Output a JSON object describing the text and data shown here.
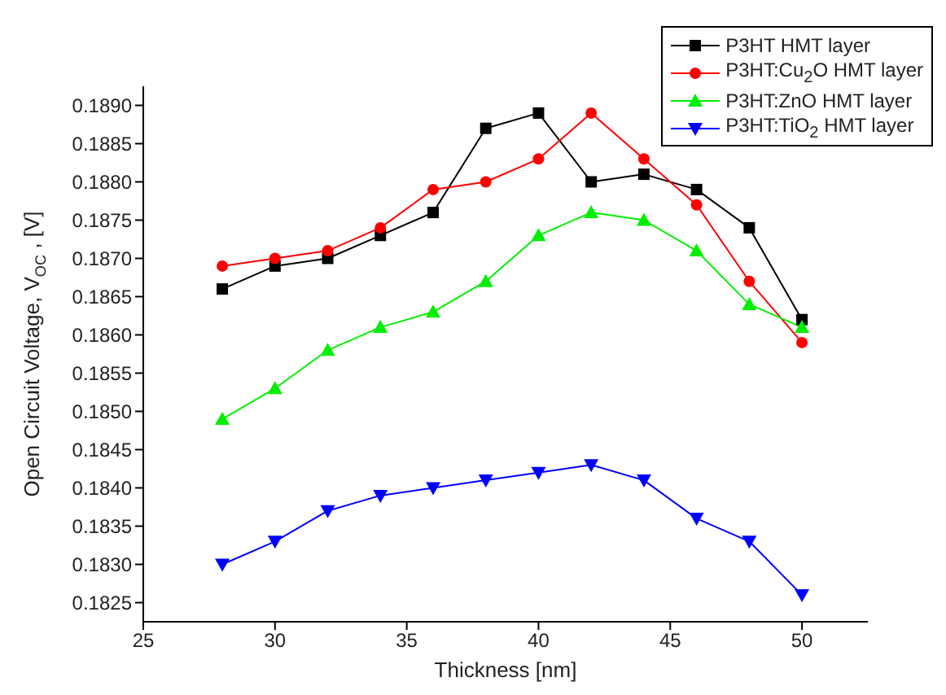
{
  "chart_data": {
    "type": "line",
    "xlabel": "Thickness  [nm]",
    "ylabel": "Open Circuit Voltage, V$_{OC}$,  [V]",
    "x": [
      28,
      30,
      32,
      34,
      36,
      38,
      40,
      42,
      44,
      46,
      48,
      50
    ],
    "xlim": [
      25,
      52.5
    ],
    "xticks": [
      25,
      30,
      35,
      40,
      45,
      50
    ],
    "ylim": [
      0.18225,
      0.18925
    ],
    "yticks": [
      0.1825,
      {
        "value": 0.183,
        "label": "0.1830"
      },
      0.1835,
      {
        "value": 0.184,
        "label": "0.1840"
      },
      0.1845,
      {
        "value": 0.185,
        "label": "0.1850"
      },
      0.1855,
      {
        "value": 0.186,
        "label": "0.1860"
      },
      0.1865,
      {
        "value": 0.187,
        "label": "0.1870"
      },
      0.1875,
      {
        "value": 0.188,
        "label": "0.1880"
      },
      0.1885,
      {
        "value": 0.189,
        "label": "0.1890"
      }
    ],
    "grid": false,
    "legend": "top right",
    "line_style": "solid",
    "series": [
      {
        "name": "P3HT HMT layer",
        "color": "#000000",
        "marker": "square",
        "values": [
          0.1866,
          0.1869,
          0.187,
          0.1873,
          0.1876,
          0.1887,
          0.1889,
          0.188,
          0.1881,
          0.1879,
          0.1874,
          0.1862
        ]
      },
      {
        "name": "P3HT:Cu$_{2}$O HMT layer",
        "color": "#ff0000",
        "marker": "circle",
        "values": [
          0.1869,
          0.187,
          0.1871,
          0.1874,
          0.1879,
          0.188,
          0.1883,
          0.1889,
          0.1883,
          0.1877,
          0.1867,
          0.1859
        ]
      },
      {
        "name": "P3HT:ZnO HMT layer",
        "color": "#00ee00",
        "marker": "triangle",
        "values": [
          0.1849,
          0.1853,
          0.1858,
          0.1861,
          0.1863,
          0.1867,
          0.1873,
          0.1876,
          0.1875,
          0.1871,
          0.1864,
          0.1861
        ]
      },
      {
        "name": "P3HT:TiO$_{2}$ HMT layer",
        "color": "#0000ff",
        "marker": "triangle-down",
        "values": [
          0.183,
          0.1833,
          0.1837,
          0.1839,
          0.184,
          0.1841,
          0.1842,
          0.1843,
          0.1841,
          0.1836,
          0.1833,
          0.1826
        ]
      }
    ]
  }
}
